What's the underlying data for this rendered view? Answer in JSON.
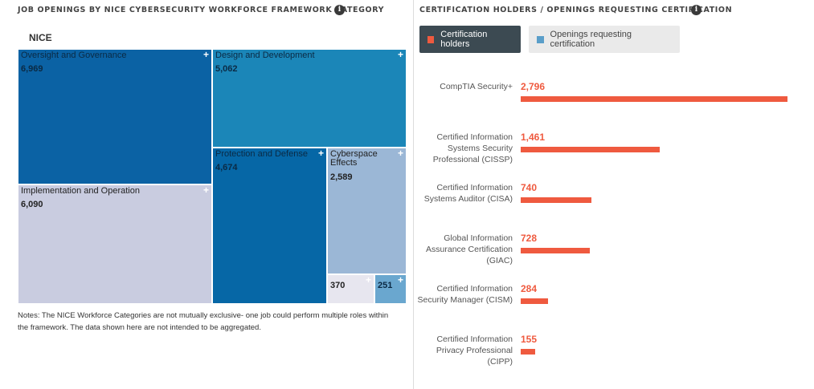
{
  "left_panel": {
    "title": "JOB OPENINGS BY NICE CYBERSECURITY WORKFORCE FRAMEWORK CATEGORY",
    "info_icon": "info-icon",
    "root_label": "NICE",
    "notes": "Notes: The NICE Workforce Categories are not mutually exclusive- one job could perform multiple roles within the framework. The data shown here are not intended to be aggregated.",
    "expand_symbol": "+"
  },
  "right_panel": {
    "title": "CERTIFICATION HOLDERS / OPENINGS REQUESTING CERTIFICATION",
    "info_icon": "info-icon",
    "legend": [
      {
        "label": "Certification holders",
        "color": "#ef5a3f",
        "active": true
      },
      {
        "label": "Openings requesting certification",
        "color": "#5a9ec9",
        "active": false
      }
    ]
  },
  "chart_data": [
    {
      "type": "treemap",
      "root": "NICE",
      "series": [
        {
          "name": "Oversight and Governance",
          "value": 6969,
          "label": "6,969",
          "color": "#0b62a4"
        },
        {
          "name": "Implementation and Operation",
          "value": 6090,
          "label": "6,090",
          "color": "#c9cce0"
        },
        {
          "name": "Design and Development",
          "value": 5062,
          "label": "5,062",
          "color": "#1b86b8"
        },
        {
          "name": "Protection and Defense",
          "value": 4674,
          "label": "4,674",
          "color": "#0667a6"
        },
        {
          "name": "Cyberspace Effects",
          "value": 2589,
          "label": "2,589",
          "color": "#9bb7d6"
        },
        {
          "name": "",
          "value": 370,
          "label": "370",
          "color": "#e7e6ef"
        },
        {
          "name": "",
          "value": 251,
          "label": "251",
          "color": "#6aa7cf"
        }
      ]
    },
    {
      "type": "bar",
      "orientation": "horizontal",
      "series_name": "Certification holders",
      "categories": [
        [
          "CompTIA Security+"
        ],
        [
          "Certified Information",
          "Systems Security",
          "Professional (CISSP)"
        ],
        [
          "Certified Information",
          "Systems Auditor (CISA)"
        ],
        [
          "Global Information",
          "Assurance Certification",
          "(GIAC)"
        ],
        [
          "Certified Information",
          "Security Manager (CISM)"
        ],
        [
          "Certified Information",
          "Privacy Professional",
          "(CIPP)"
        ]
      ],
      "values": [
        2796,
        1461,
        740,
        728,
        284,
        155
      ],
      "value_labels": [
        "2,796",
        "1,461",
        "740",
        "728",
        "284",
        "155"
      ],
      "color": "#ef5a3f"
    }
  ]
}
